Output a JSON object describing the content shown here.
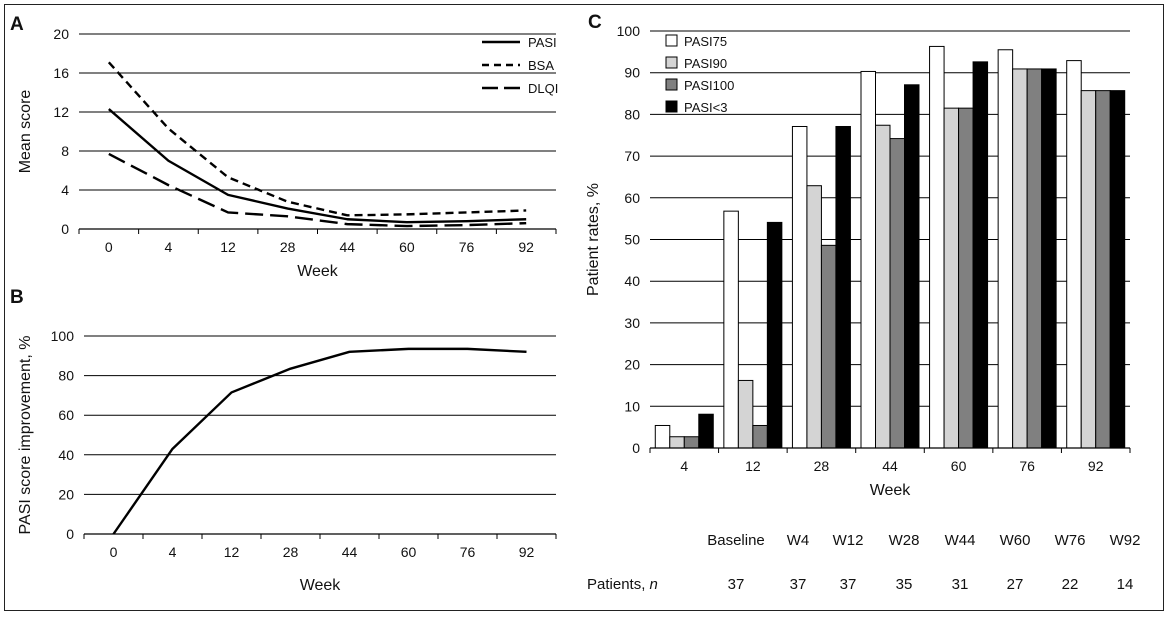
{
  "chart_data": [
    {
      "panel": "A",
      "type": "line",
      "categories": [
        "0",
        "4",
        "12",
        "28",
        "44",
        "60",
        "76",
        "92"
      ],
      "series": [
        {
          "name": "PASI",
          "values": [
            12.3,
            7.0,
            3.5,
            2.1,
            1.0,
            0.7,
            0.8,
            1.0
          ],
          "style": "solid"
        },
        {
          "name": "BSA",
          "values": [
            17.1,
            10.3,
            5.3,
            2.8,
            1.4,
            1.5,
            1.7,
            1.9
          ],
          "style": "short-dash"
        },
        {
          "name": "DLQI",
          "values": [
            7.7,
            4.5,
            1.7,
            1.3,
            0.5,
            0.3,
            0.4,
            0.6
          ],
          "style": "long-dash"
        }
      ],
      "xlabel": "Week",
      "ylabel": "Mean score",
      "ylim": [
        0,
        20
      ],
      "yticks": [
        "0",
        "4",
        "8",
        "12",
        "16",
        "20"
      ],
      "grid": true,
      "legend": "top-right"
    },
    {
      "panel": "B",
      "type": "line",
      "categories": [
        "0",
        "4",
        "12",
        "28",
        "44",
        "60",
        "76",
        "92"
      ],
      "series": [
        {
          "name": "PASI score improvement",
          "values": [
            0,
            43,
            71.5,
            83.5,
            92,
            93.5,
            93.5,
            92
          ],
          "style": "solid"
        }
      ],
      "xlabel": "Week",
      "ylabel": "PASI score improvement, %",
      "ylim": [
        0,
        100
      ],
      "yticks": [
        "0",
        "20",
        "40",
        "60",
        "80",
        "100"
      ],
      "grid": true
    },
    {
      "panel": "C",
      "type": "bar",
      "categories": [
        "4",
        "12",
        "28",
        "44",
        "60",
        "76",
        "92"
      ],
      "series": [
        {
          "name": "PASI75",
          "values": [
            5.4,
            56.8,
            77.1,
            90.3,
            96.3,
            95.5,
            92.9
          ],
          "color": "#ffffff"
        },
        {
          "name": "PASI90",
          "values": [
            2.7,
            16.2,
            62.9,
            77.4,
            81.5,
            90.9,
            85.7
          ],
          "color": "#d4d4d4"
        },
        {
          "name": "PASI100",
          "values": [
            2.7,
            5.4,
            48.6,
            74.2,
            81.5,
            90.9,
            85.7
          ],
          "color": "#808080"
        },
        {
          "name": "PASI<3",
          "values": [
            8.1,
            54.1,
            77.1,
            87.1,
            92.6,
            90.9,
            85.7
          ],
          "color": "#000000"
        }
      ],
      "xlabel": "Week",
      "ylabel": "Patient rates, %",
      "ylim": [
        0,
        100
      ],
      "yticks": [
        "0",
        "10",
        "20",
        "30",
        "40",
        "50",
        "60",
        "70",
        "80",
        "90",
        "100"
      ],
      "grid": true,
      "legend": "top-left",
      "patients_table": {
        "timepoints": [
          "Baseline",
          "W4",
          "W12",
          "W28",
          "W44",
          "W60",
          "W76",
          "W92"
        ],
        "row_label": "Patients,",
        "row_label_var": "n",
        "counts": [
          "37",
          "37",
          "37",
          "35",
          "31",
          "27",
          "22",
          "14"
        ]
      }
    }
  ]
}
